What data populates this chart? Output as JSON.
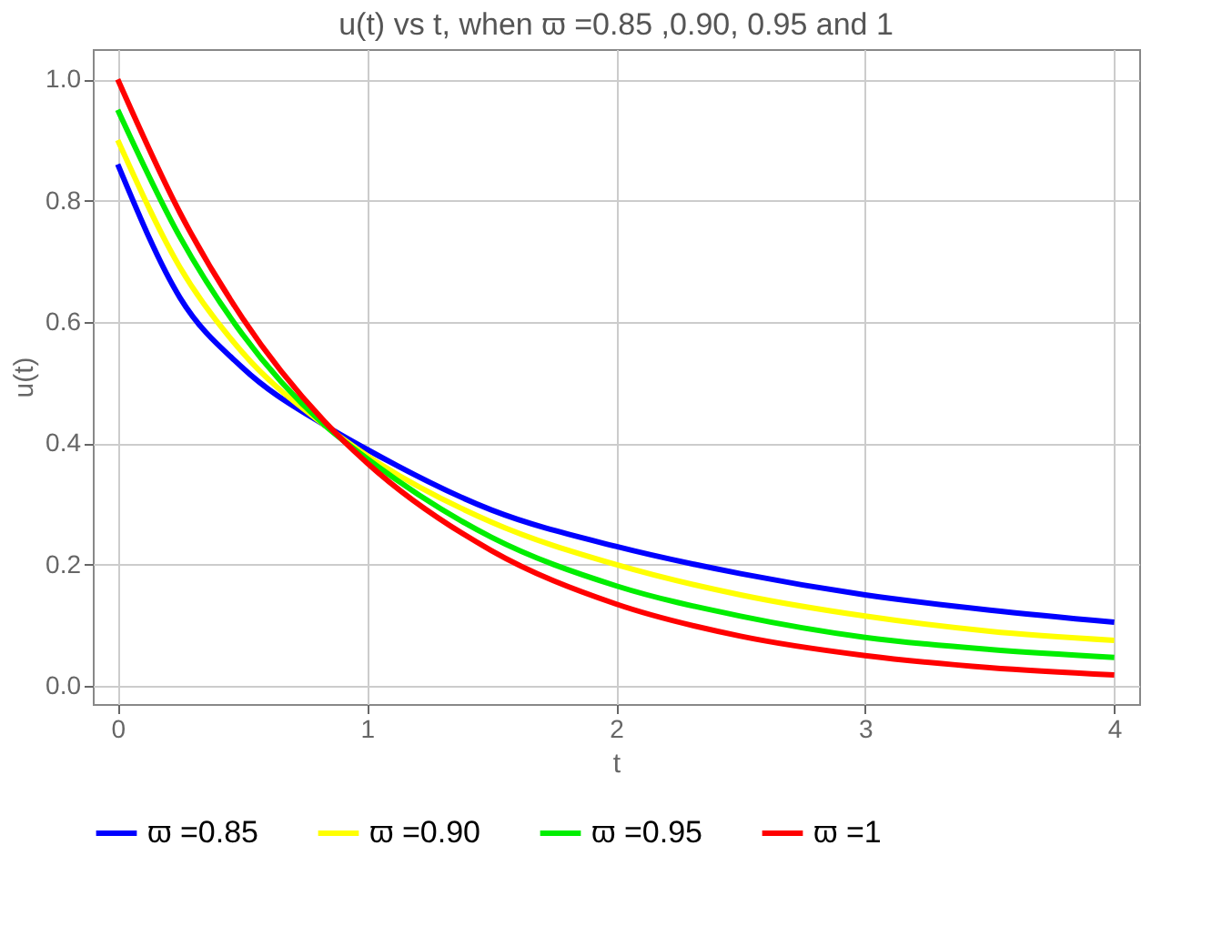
{
  "chart_data": {
    "type": "line",
    "title": "u(t) vs t, when ϖ =0.85 ,0.90, 0.95 and 1",
    "xlabel": "t",
    "ylabel": "u(t)",
    "x": [
      0,
      0.25,
      0.5,
      0.83,
      1,
      1.5,
      2,
      2.5,
      3,
      3.5,
      4
    ],
    "series": [
      {
        "name": "ϖ =0.85",
        "color": "#0000ff",
        "values": [
          0.86,
          0.64,
          0.525,
          0.43,
          0.39,
          0.29,
          0.23,
          0.185,
          0.15,
          0.125,
          0.105
        ]
      },
      {
        "name": "ϖ =0.90",
        "color": "#ffff00",
        "values": [
          0.9,
          0.69,
          0.55,
          0.43,
          0.38,
          0.27,
          0.2,
          0.15,
          0.115,
          0.09,
          0.075
        ]
      },
      {
        "name": "ϖ =0.95",
        "color": "#00ee00",
        "values": [
          0.95,
          0.74,
          0.58,
          0.43,
          0.375,
          0.245,
          0.165,
          0.115,
          0.08,
          0.06,
          0.047
        ]
      },
      {
        "name": "ϖ =1",
        "color": "#ff0000",
        "values": [
          1,
          0.78,
          0.607,
          0.436,
          0.368,
          0.223,
          0.135,
          0.082,
          0.05,
          0.03,
          0.018
        ]
      }
    ],
    "xlim": [
      -0.1,
      4.1
    ],
    "ylim": [
      -0.03,
      1.05
    ],
    "xticks": [
      0,
      1,
      2,
      3,
      4
    ],
    "yticks": [
      {
        "value": 0,
        "label": "0.0"
      },
      0.2,
      0.4,
      0.6,
      0.8,
      {
        "value": 1,
        "label": "1.0"
      }
    ],
    "grid": true,
    "legend": "bottom",
    "marker": "none",
    "line_style": "solid"
  }
}
